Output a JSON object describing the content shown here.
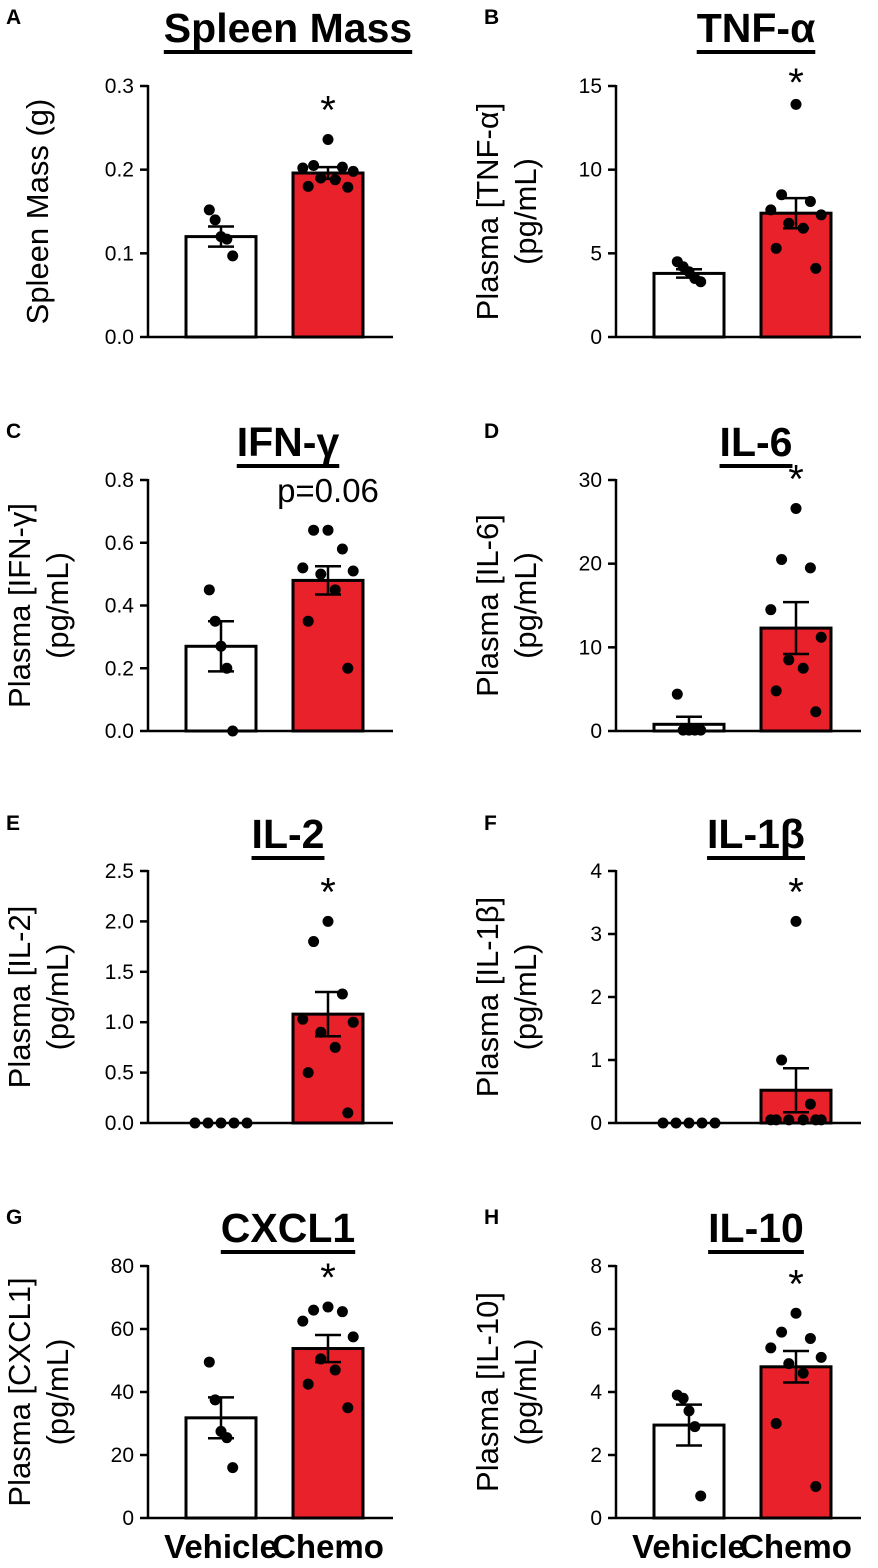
{
  "colors": {
    "vehicle_fill": "#ffffff",
    "chemo_fill": "#e8212a",
    "ink": "#000000"
  },
  "x_categories": [
    "Vehicle",
    "Chemo"
  ],
  "chart_data": [
    {
      "panel": "A",
      "type": "bar",
      "title": "Spleen Mass",
      "ylabel": [
        "Spleen Mass (g)"
      ],
      "ylim": [
        0,
        0.3
      ],
      "yticks": [
        0.0,
        0.1,
        0.2,
        0.3
      ],
      "ytick_labels": [
        "0.0",
        "0.1",
        "0.2",
        "0.3"
      ],
      "categories": [
        "Vehicle",
        "Chemo"
      ],
      "xlabels_shown": false,
      "values": [
        0.12,
        0.196
      ],
      "sem": [
        0.012,
        0.007
      ],
      "points": [
        [
          0.152,
          0.14,
          0.12,
          0.117,
          0.097
        ],
        [
          0.236,
          0.205,
          0.203,
          0.202,
          0.198,
          0.19,
          0.188,
          0.18,
          0.179
        ]
      ],
      "annotation": "*"
    },
    {
      "panel": "B",
      "type": "bar",
      "title": "TNF-α",
      "ylabel": [
        "Plasma [TNF-α]",
        "(pg/mL)"
      ],
      "ylim": [
        0,
        15
      ],
      "yticks": [
        0,
        5,
        10,
        15
      ],
      "ytick_labels": [
        "0",
        "5",
        "10",
        "15"
      ],
      "categories": [
        "Vehicle",
        "Chemo"
      ],
      "xlabels_shown": false,
      "values": [
        3.8,
        7.4
      ],
      "sem": [
        0.25,
        0.9
      ],
      "points": [
        [
          4.5,
          4.2,
          3.9,
          3.5,
          3.3
        ],
        [
          13.9,
          8.5,
          8.1,
          7.6,
          7.3,
          6.8,
          6.5,
          5.3,
          4.1
        ]
      ],
      "annotation": "*"
    },
    {
      "panel": "C",
      "type": "bar",
      "title": "IFN-γ",
      "ylabel": [
        "Plasma [IFN-γ]",
        "(pg/mL)"
      ],
      "ylim": [
        0,
        0.8
      ],
      "yticks": [
        0.0,
        0.2,
        0.4,
        0.6,
        0.8
      ],
      "ytick_labels": [
        "0.0",
        "0.2",
        "0.4",
        "0.6",
        "0.8"
      ],
      "categories": [
        "Vehicle",
        "Chemo"
      ],
      "xlabels_shown": false,
      "values": [
        0.27,
        0.48
      ],
      "sem": [
        0.08,
        0.045
      ],
      "points": [
        [
          0.45,
          0.35,
          0.27,
          0.2,
          0.0
        ],
        [
          0.64,
          0.64,
          0.58,
          0.52,
          0.51,
          0.5,
          0.45,
          0.35,
          0.2
        ]
      ],
      "annotation": "p=0.06"
    },
    {
      "panel": "D",
      "type": "bar",
      "title": "IL-6",
      "ylabel": [
        "Plasma [IL-6]",
        "(pg/mL)"
      ],
      "ylim": [
        0,
        30
      ],
      "yticks": [
        0,
        10,
        20,
        30
      ],
      "ytick_labels": [
        "0",
        "10",
        "20",
        "30"
      ],
      "categories": [
        "Vehicle",
        "Chemo"
      ],
      "xlabels_shown": false,
      "values": [
        0.8,
        12.3
      ],
      "sem": [
        0.9,
        3.1
      ],
      "points": [
        [
          4.4,
          0.1,
          0.1,
          0.1,
          0.1
        ],
        [
          26.6,
          20.5,
          19.5,
          14.5,
          11.2,
          8.5,
          7.5,
          4.8,
          2.3
        ]
      ],
      "annotation": "*"
    },
    {
      "panel": "E",
      "type": "bar",
      "title": "IL-2",
      "ylabel": [
        "Plasma [IL-2]",
        "(pg/mL)"
      ],
      "ylim": [
        0,
        2.5
      ],
      "yticks": [
        0.0,
        0.5,
        1.0,
        1.5,
        2.0,
        2.5
      ],
      "ytick_labels": [
        "0.0",
        "0.5",
        "1.0",
        "1.5",
        "2.0",
        "2.5"
      ],
      "categories": [
        "Vehicle",
        "Chemo"
      ],
      "xlabels_shown": false,
      "values": [
        0.0,
        1.08
      ],
      "sem": [
        0.0,
        0.22
      ],
      "points": [
        [
          0,
          0,
          0,
          0,
          0
        ],
        [
          2.0,
          1.8,
          1.28,
          1.03,
          1.0,
          0.9,
          0.75,
          0.5,
          0.1
        ]
      ],
      "annotation": "*"
    },
    {
      "panel": "F",
      "type": "bar",
      "title": "IL-1β",
      "ylabel": [
        "Plasma [IL-1β]",
        "(pg/mL)"
      ],
      "ylim": [
        0,
        4
      ],
      "yticks": [
        0,
        1,
        2,
        3,
        4
      ],
      "ytick_labels": [
        "0",
        "1",
        "2",
        "3",
        "4"
      ],
      "categories": [
        "Vehicle",
        "Chemo"
      ],
      "xlabels_shown": false,
      "values": [
        0.0,
        0.52
      ],
      "sem": [
        0.0,
        0.35
      ],
      "points": [
        [
          0,
          0,
          0,
          0,
          0
        ],
        [
          3.2,
          1.0,
          0.3,
          0.05,
          0.05,
          0.05,
          0.05,
          0.05,
          0.05
        ]
      ],
      "annotation": "*"
    },
    {
      "panel": "G",
      "type": "bar",
      "title": "CXCL1",
      "ylabel": [
        "Plasma [CXCL1]",
        "(pg/mL)"
      ],
      "ylim": [
        0,
        80
      ],
      "yticks": [
        0,
        20,
        40,
        60,
        80
      ],
      "ytick_labels": [
        "0",
        "20",
        "40",
        "60",
        "80"
      ],
      "categories": [
        "Vehicle",
        "Chemo"
      ],
      "xlabels_shown": true,
      "values": [
        31.8,
        53.8
      ],
      "sem": [
        6.5,
        4.3
      ],
      "points": [
        [
          49.5,
          37.5,
          27.5,
          25.5,
          16.0
        ],
        [
          67.0,
          66.0,
          65.5,
          62.5,
          57.5,
          50.5,
          47.0,
          42.5,
          35.0
        ]
      ],
      "annotation": "*"
    },
    {
      "panel": "H",
      "type": "bar",
      "title": "IL-10",
      "ylabel": [
        "Plasma [IL-10]",
        "(pg/mL)"
      ],
      "ylim": [
        0,
        8
      ],
      "yticks": [
        0,
        2,
        4,
        6,
        8
      ],
      "ytick_labels": [
        "0",
        "2",
        "4",
        "6",
        "8"
      ],
      "categories": [
        "Vehicle",
        "Chemo"
      ],
      "xlabels_shown": true,
      "values": [
        2.95,
        4.8
      ],
      "sem": [
        0.65,
        0.5
      ],
      "points": [
        [
          3.9,
          3.8,
          3.4,
          2.9,
          0.7
        ],
        [
          6.5,
          5.9,
          5.7,
          5.4,
          5.1,
          4.9,
          4.6,
          3.0,
          1.0
        ]
      ],
      "annotation": "*"
    }
  ]
}
